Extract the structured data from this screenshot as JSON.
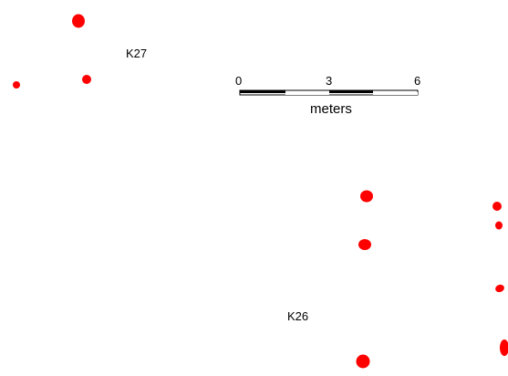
{
  "map": {
    "feature_color": "#ff0000",
    "background_color": "#ffffff",
    "labels": {
      "k27": "K27",
      "k26": "K26"
    },
    "scale_bar": {
      "tick_labels": [
        "0",
        "3",
        "6"
      ],
      "unit": "meters",
      "segment_colors": [
        "#000000",
        "#ffffff",
        "#000000",
        "#ffffff"
      ]
    }
  }
}
